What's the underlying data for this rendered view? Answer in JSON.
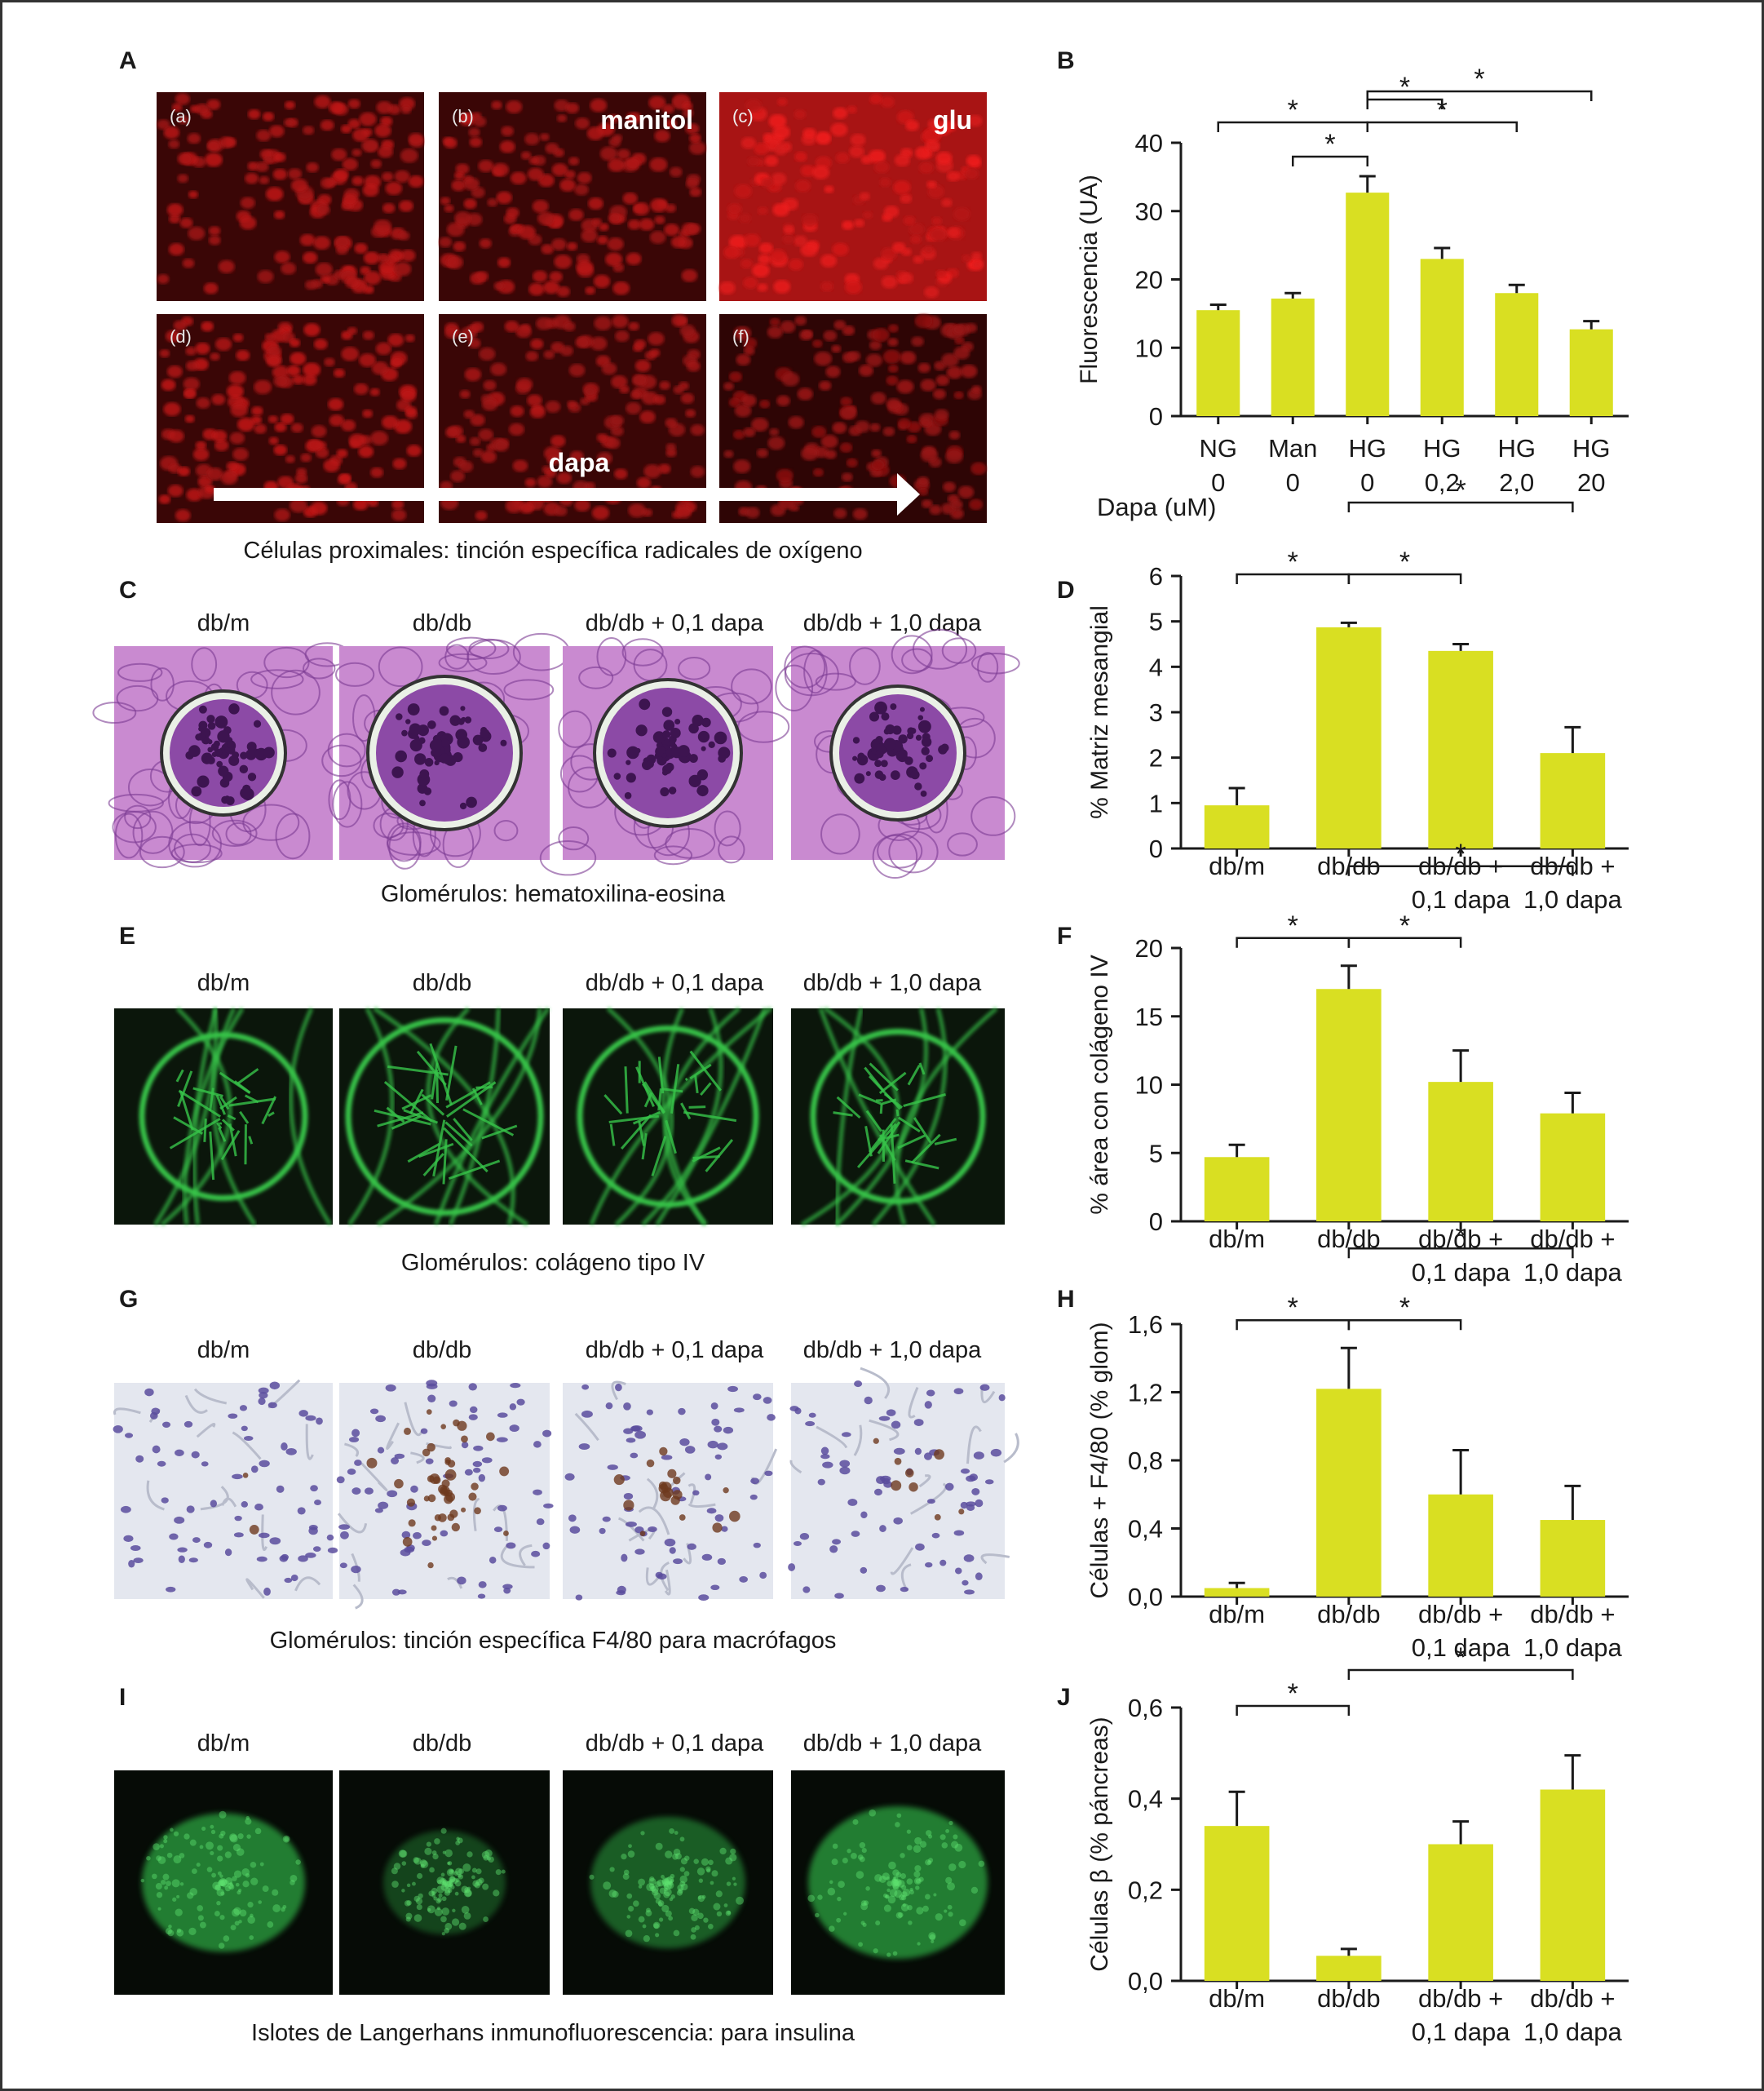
{
  "panel_letters": [
    "A",
    "B",
    "C",
    "D",
    "E",
    "F",
    "G",
    "H",
    "I",
    "J"
  ],
  "panel_a": {
    "caption": "Células proximales: tinción específica radicales de oxígeno",
    "tiles": [
      "(a)",
      "(b)",
      "(c)",
      "(d)",
      "(e)",
      "(f)"
    ],
    "tile_labels": {
      "b": "manitol",
      "c": "glu"
    },
    "arrow_label": "dapa"
  },
  "micro_group_labels": [
    "db/m",
    "db/db",
    "db/db + 0,1 dapa",
    "db/db + 1,0 dapa"
  ],
  "panel_c": {
    "caption": "Glomérulos: hematoxilina-eosina"
  },
  "panel_e": {
    "caption": "Glomérulos: colágeno tipo IV"
  },
  "panel_g": {
    "caption": "Glomérulos: tinción específica F4/80 para macrófagos"
  },
  "panel_i": {
    "caption": "Islotes de Langerhans inmunofluorescencia: para insulina"
  },
  "colors": {
    "bar": "#d9df22",
    "ros_red": "#c41a1a",
    "ihc_green": "#37c44a",
    "insulin_green": "#2fae45",
    "ihc_nuclei": "#5b4c9e",
    "ihc_brown": "#6e3a1e"
  },
  "chart_data": [
    {
      "panel": "B",
      "type": "bar",
      "categories": [
        "NG\n0",
        "Man\n0",
        "HG\n0",
        "HG\n0,2",
        "HG\n2,0",
        "HG\n20"
      ],
      "values": [
        15.5,
        17.2,
        32.7,
        23.0,
        18.0,
        12.7
      ],
      "errors": [
        0.8,
        0.8,
        2.4,
        1.6,
        1.2,
        1.2
      ],
      "ylabel": "Fluorescencia (UA)",
      "xlabel_prefix": "Dapa (uM)",
      "ylim": [
        0,
        40
      ],
      "yticks": [
        "0",
        "10",
        "20",
        "30",
        "40"
      ],
      "grid": false,
      "significance": [
        {
          "a": 0,
          "b": 2,
          "mark": "*"
        },
        {
          "a": 1,
          "b": 2,
          "mark": "*"
        },
        {
          "a": 2,
          "b": 3,
          "mark": "*"
        },
        {
          "a": 2,
          "b": 4,
          "mark": "*"
        },
        {
          "a": 2,
          "b": 5,
          "mark": "*"
        }
      ]
    },
    {
      "panel": "D",
      "type": "bar",
      "categories": [
        "db/m",
        "db/db",
        "db/db +\n0,1 dapa",
        "db/db +\n1,0 dapa"
      ],
      "values": [
        0.95,
        4.87,
        4.35,
        2.1
      ],
      "errors": [
        0.38,
        0.1,
        0.15,
        0.57
      ],
      "ylabel": "% Matriz mesangial",
      "ylim": [
        0,
        6
      ],
      "yticks": [
        "0",
        "1",
        "2",
        "3",
        "4",
        "5",
        "6"
      ],
      "grid": false,
      "significance": [
        {
          "a": 0,
          "b": 1,
          "mark": "*"
        },
        {
          "a": 1,
          "b": 2,
          "mark": "*"
        },
        {
          "a": 1,
          "b": 3,
          "mark": "*"
        }
      ]
    },
    {
      "panel": "F",
      "type": "bar",
      "categories": [
        "db/m",
        "db/db",
        "db/db +\n0,1 dapa",
        "db/db +\n1,0 dapa"
      ],
      "values": [
        4.7,
        17.0,
        10.2,
        7.9
      ],
      "errors": [
        0.9,
        1.7,
        2.3,
        1.5
      ],
      "ylabel": "% área con colágeno IV",
      "ylim": [
        0,
        20
      ],
      "yticks": [
        "0",
        "5",
        "10",
        "15",
        "20"
      ],
      "grid": false,
      "significance": [
        {
          "a": 0,
          "b": 1,
          "mark": "*"
        },
        {
          "a": 1,
          "b": 2,
          "mark": "*"
        },
        {
          "a": 1,
          "b": 3,
          "mark": "*"
        }
      ]
    },
    {
      "panel": "H",
      "type": "bar",
      "categories": [
        "db/m",
        "db/db",
        "db/db +\n0,1 dapa",
        "db/db +\n1,0 dapa"
      ],
      "values": [
        0.05,
        1.22,
        0.6,
        0.45
      ],
      "errors": [
        0.03,
        0.24,
        0.26,
        0.2
      ],
      "ylabel": "Células + F4/80 (% glom)",
      "ylim": [
        0,
        1.6
      ],
      "yticks": [
        "0,0",
        "0,4",
        "0,8",
        "1,2",
        "1,6"
      ],
      "grid": false,
      "significance": [
        {
          "a": 0,
          "b": 1,
          "mark": "*"
        },
        {
          "a": 1,
          "b": 2,
          "mark": "*"
        },
        {
          "a": 1,
          "b": 3,
          "mark": "*"
        }
      ]
    },
    {
      "panel": "J",
      "type": "bar",
      "categories": [
        "db/m",
        "db/db",
        "db/db +\n0,1 dapa",
        "db/db +\n1,0 dapa"
      ],
      "values": [
        0.34,
        0.055,
        0.3,
        0.42
      ],
      "errors": [
        0.075,
        0.015,
        0.05,
        0.075
      ],
      "ylabel": "Células β (% páncreas)",
      "ylim": [
        0,
        0.6
      ],
      "yticks": [
        "0,0",
        "0,2",
        "0,4",
        "0,6"
      ],
      "grid": false,
      "significance": [
        {
          "a": 0,
          "b": 1,
          "mark": "*"
        },
        {
          "a": 1,
          "b": 3,
          "mark": "*"
        }
      ]
    }
  ]
}
